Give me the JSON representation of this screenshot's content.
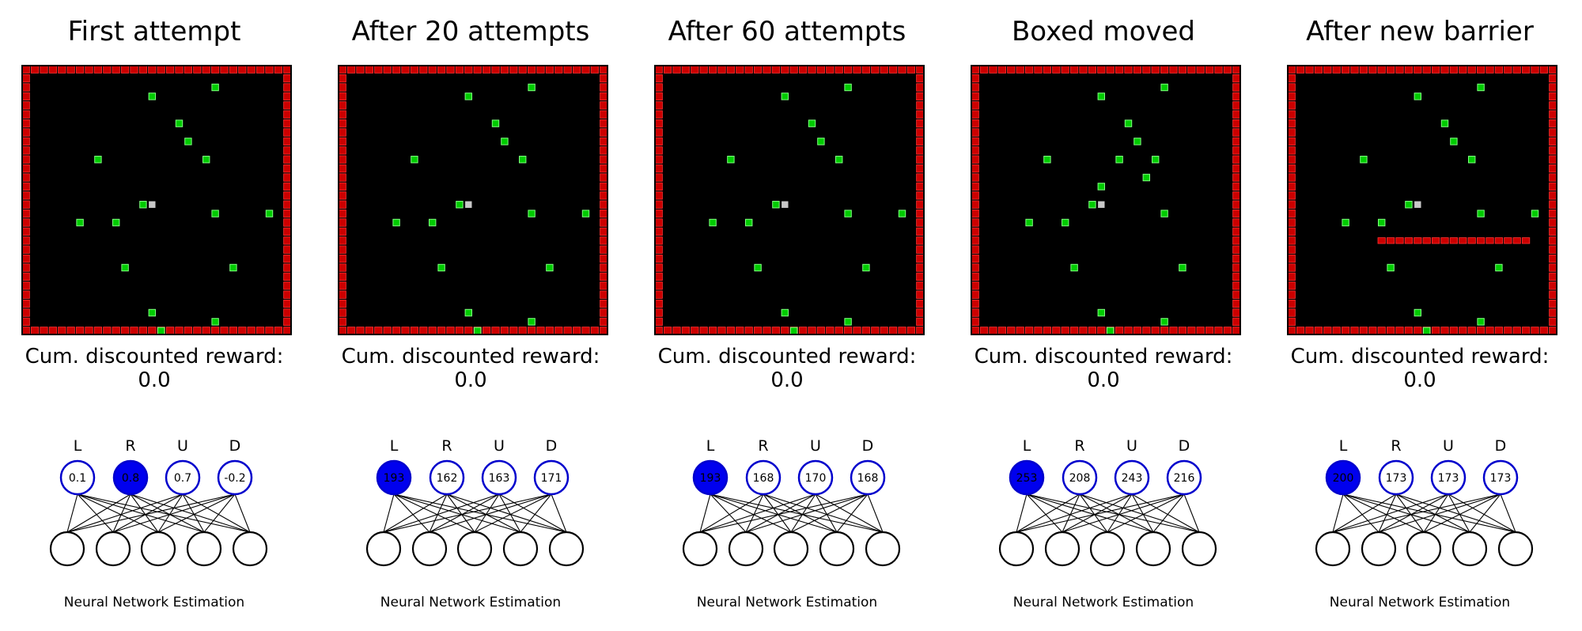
{
  "colors": {
    "wall": "#cc0000",
    "wall_cell_border": "#ff3333",
    "floor": "#000000",
    "reward_cell": "#00cc00",
    "reward_cell_border": "#80ff80",
    "agent_cell": "#c8c8c8",
    "active_neuron": "#0000ee",
    "output_neuron_border": "#0000cc",
    "hidden_neuron_border": "#000000"
  },
  "grid_size": 30,
  "common": {
    "reward_label": "Cum. discounted reward:",
    "network_caption": "Neural Network Estimation",
    "action_labels": [
      "L",
      "R",
      "U",
      "D"
    ]
  },
  "panels": [
    {
      "title": "First attempt",
      "reward_value": "0.0",
      "q_values": [
        "0.1",
        "0.8",
        "0.7",
        "-0.2"
      ],
      "active_action": 1,
      "agent": [
        14,
        15
      ],
      "rewards": [
        [
          14,
          3
        ],
        [
          21,
          2
        ],
        [
          17,
          6
        ],
        [
          18,
          8
        ],
        [
          8,
          10
        ],
        [
          20,
          10
        ],
        [
          13,
          15
        ],
        [
          6,
          17
        ],
        [
          10,
          17
        ],
        [
          21,
          16
        ],
        [
          27,
          16
        ],
        [
          11,
          22
        ],
        [
          23,
          22
        ],
        [
          14,
          27
        ],
        [
          15,
          29
        ],
        [
          21,
          28
        ]
      ],
      "barrier": null
    },
    {
      "title": "After 20 attempts",
      "reward_value": "0.0",
      "q_values": [
        "193",
        "162",
        "163",
        "171"
      ],
      "active_action": 0,
      "agent": [
        14,
        15
      ],
      "rewards": [
        [
          14,
          3
        ],
        [
          21,
          2
        ],
        [
          17,
          6
        ],
        [
          18,
          8
        ],
        [
          8,
          10
        ],
        [
          20,
          10
        ],
        [
          13,
          15
        ],
        [
          6,
          17
        ],
        [
          10,
          17
        ],
        [
          21,
          16
        ],
        [
          27,
          16
        ],
        [
          11,
          22
        ],
        [
          23,
          22
        ],
        [
          14,
          27
        ],
        [
          15,
          29
        ],
        [
          21,
          28
        ]
      ],
      "barrier": null
    },
    {
      "title": "After 60 attempts",
      "reward_value": "0.0",
      "q_values": [
        "193",
        "168",
        "170",
        "168"
      ],
      "active_action": 0,
      "agent": [
        14,
        15
      ],
      "rewards": [
        [
          14,
          3
        ],
        [
          21,
          2
        ],
        [
          17,
          6
        ],
        [
          18,
          8
        ],
        [
          8,
          10
        ],
        [
          20,
          10
        ],
        [
          13,
          15
        ],
        [
          6,
          17
        ],
        [
          10,
          17
        ],
        [
          21,
          16
        ],
        [
          27,
          16
        ],
        [
          11,
          22
        ],
        [
          23,
          22
        ],
        [
          14,
          27
        ],
        [
          15,
          29
        ],
        [
          21,
          28
        ]
      ],
      "barrier": null
    },
    {
      "title": "Boxed moved",
      "reward_value": "0.0",
      "q_values": [
        "253",
        "208",
        "243",
        "216"
      ],
      "active_action": 0,
      "agent": [
        14,
        15
      ],
      "rewards": [
        [
          14,
          3
        ],
        [
          21,
          2
        ],
        [
          17,
          6
        ],
        [
          18,
          8
        ],
        [
          8,
          10
        ],
        [
          16,
          10
        ],
        [
          20,
          10
        ],
        [
          19,
          12
        ],
        [
          14,
          13
        ],
        [
          13,
          15
        ],
        [
          6,
          17
        ],
        [
          10,
          17
        ],
        [
          21,
          16
        ],
        [
          11,
          22
        ],
        [
          23,
          22
        ],
        [
          14,
          27
        ],
        [
          15,
          29
        ],
        [
          21,
          28
        ]
      ],
      "barrier": null
    },
    {
      "title": "After new barrier",
      "reward_value": "0.0",
      "q_values": [
        "200",
        "173",
        "173",
        "173"
      ],
      "active_action": 0,
      "agent": [
        14,
        15
      ],
      "rewards": [
        [
          14,
          3
        ],
        [
          21,
          2
        ],
        [
          17,
          6
        ],
        [
          18,
          8
        ],
        [
          8,
          10
        ],
        [
          20,
          10
        ],
        [
          13,
          15
        ],
        [
          6,
          17
        ],
        [
          10,
          17
        ],
        [
          21,
          16
        ],
        [
          27,
          16
        ],
        [
          11,
          22
        ],
        [
          23,
          22
        ],
        [
          14,
          27
        ],
        [
          15,
          29
        ],
        [
          21,
          28
        ]
      ],
      "barrier": [
        [
          10,
          19
        ],
        [
          26,
          19
        ]
      ]
    }
  ]
}
